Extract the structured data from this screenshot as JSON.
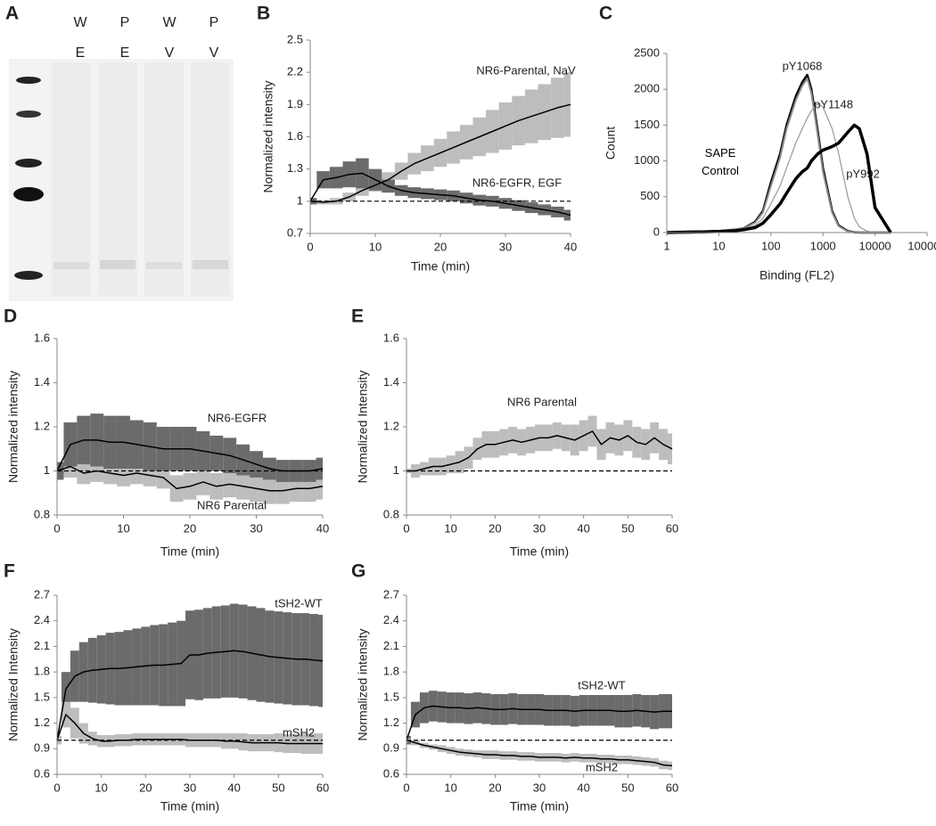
{
  "blot": {
    "panel": "A",
    "lanes": [
      [
        "W",
        "E"
      ],
      [
        "P",
        "E"
      ],
      [
        "W",
        "V"
      ],
      [
        "P",
        "V"
      ]
    ]
  },
  "chart_data": [
    {
      "type": "line",
      "panel": "B",
      "xlabel": "Time (min)",
      "ylabel": "Normalized intensity",
      "x": [
        0,
        2,
        4,
        6,
        8,
        10,
        12,
        14,
        16,
        18,
        20,
        22,
        24,
        26,
        28,
        30,
        32,
        34,
        36,
        38,
        40
      ],
      "xlim": [
        0,
        40
      ],
      "xticks": [
        0,
        10,
        20,
        30,
        40
      ],
      "ylim": [
        0.7,
        2.5
      ],
      "yticks": [
        0.7,
        1,
        1.3,
        1.6,
        1.9,
        2.2,
        2.5
      ],
      "refline": 1,
      "series": [
        {
          "name": "NR6-Parental, NaV",
          "color": "#000000",
          "band_color": "#bdbdbd",
          "values": [
            1.0,
            0.99,
            1.0,
            1.04,
            1.1,
            1.15,
            1.2,
            1.28,
            1.35,
            1.4,
            1.45,
            1.5,
            1.55,
            1.6,
            1.65,
            1.7,
            1.75,
            1.79,
            1.83,
            1.87,
            1.9
          ],
          "errors": [
            0.02,
            0.02,
            0.03,
            0.04,
            0.05,
            0.06,
            0.07,
            0.08,
            0.1,
            0.12,
            0.13,
            0.15,
            0.16,
            0.18,
            0.2,
            0.22,
            0.23,
            0.25,
            0.26,
            0.28,
            0.3
          ]
        },
        {
          "name": "NR6-EGFR, EGF",
          "color": "#000000",
          "band_color": "#6b6b6b",
          "values": [
            1.0,
            1.2,
            1.22,
            1.25,
            1.26,
            1.2,
            1.14,
            1.1,
            1.08,
            1.07,
            1.06,
            1.05,
            1.03,
            1.01,
            1.0,
            0.98,
            0.96,
            0.94,
            0.92,
            0.9,
            0.87
          ],
          "errors": [
            0.03,
            0.08,
            0.1,
            0.12,
            0.14,
            0.1,
            0.06,
            0.05,
            0.05,
            0.05,
            0.05,
            0.05,
            0.05,
            0.05,
            0.05,
            0.05,
            0.05,
            0.05,
            0.05,
            0.05,
            0.05
          ]
        }
      ]
    },
    {
      "type": "line",
      "panel": "C",
      "xlabel": "Binding (FL2)",
      "ylabel": "Count",
      "xscale": "log",
      "x": [
        1,
        2,
        5,
        10,
        20,
        30,
        50,
        70,
        100,
        150,
        200,
        300,
        400,
        500,
        600,
        800,
        1000,
        1500,
        2000,
        3000,
        4000,
        5000,
        7000,
        10000,
        20000
      ],
      "xlim": [
        1,
        100000
      ],
      "xticks": [
        1,
        10,
        100,
        1000,
        10000,
        100000
      ],
      "ylim": [
        0,
        2500
      ],
      "yticks": [
        0,
        500,
        1000,
        1500,
        2000,
        2500
      ],
      "series": [
        {
          "name": "SAPE Control",
          "color": "#000000",
          "width": 2.5,
          "values": [
            0,
            10,
            15,
            20,
            40,
            60,
            150,
            300,
            700,
            1100,
            1500,
            1900,
            2100,
            2200,
            2000,
            1400,
            900,
            300,
            100,
            20,
            5,
            0,
            0,
            0,
            0
          ]
        },
        {
          "name": "pY1068",
          "color": "#888888",
          "width": 2,
          "values": [
            0,
            10,
            15,
            20,
            40,
            60,
            140,
            280,
            650,
            1050,
            1450,
            1850,
            2050,
            2150,
            1950,
            1350,
            850,
            280,
            90,
            15,
            5,
            0,
            0,
            0,
            0
          ]
        },
        {
          "name": "pY1148",
          "color": "#999999",
          "width": 1.2,
          "values": [
            0,
            5,
            10,
            15,
            30,
            50,
            100,
            200,
            400,
            650,
            900,
            1250,
            1450,
            1600,
            1700,
            1800,
            1750,
            1450,
            1100,
            500,
            200,
            80,
            20,
            0,
            0
          ]
        },
        {
          "name": "pY992",
          "color": "#000000",
          "width": 3.5,
          "values": [
            0,
            5,
            10,
            15,
            25,
            40,
            70,
            130,
            250,
            400,
            550,
            750,
            850,
            900,
            1000,
            1100,
            1150,
            1200,
            1250,
            1400,
            1500,
            1450,
            1100,
            350,
            0
          ]
        }
      ]
    },
    {
      "type": "line",
      "panel": "D",
      "xlabel": "Time (min)",
      "ylabel": "Normalized intensity",
      "x": [
        0,
        2,
        4,
        6,
        8,
        10,
        12,
        14,
        16,
        18,
        20,
        22,
        24,
        26,
        28,
        30,
        32,
        34,
        36,
        38,
        40
      ],
      "xlim": [
        0,
        40
      ],
      "xticks": [
        0,
        10,
        20,
        30,
        40
      ],
      "ylim": [
        0.8,
        1.6
      ],
      "yticks": [
        0.8,
        1,
        1.2,
        1.4,
        1.6
      ],
      "refline": 1,
      "series": [
        {
          "name": "NR6 Parental",
          "color": "#000000",
          "band_color": "#bdbdbd",
          "values": [
            1.0,
            1.02,
            0.99,
            1.0,
            0.99,
            0.98,
            0.99,
            0.98,
            0.97,
            0.92,
            0.93,
            0.95,
            0.93,
            0.94,
            0.93,
            0.92,
            0.91,
            0.91,
            0.92,
            0.92,
            0.93
          ],
          "errors": [
            0.04,
            0.05,
            0.05,
            0.05,
            0.05,
            0.05,
            0.05,
            0.05,
            0.05,
            0.06,
            0.06,
            0.06,
            0.06,
            0.06,
            0.06,
            0.06,
            0.06,
            0.06,
            0.06,
            0.06,
            0.06
          ]
        },
        {
          "name": "NR6-EGFR",
          "color": "#000000",
          "band_color": "#6b6b6b",
          "values": [
            1.0,
            1.12,
            1.14,
            1.14,
            1.13,
            1.13,
            1.12,
            1.11,
            1.1,
            1.1,
            1.1,
            1.09,
            1.08,
            1.07,
            1.05,
            1.03,
            1.01,
            1.0,
            1.0,
            1.0,
            1.01
          ],
          "errors": [
            0.04,
            0.1,
            0.11,
            0.12,
            0.12,
            0.12,
            0.11,
            0.11,
            0.1,
            0.1,
            0.1,
            0.09,
            0.08,
            0.08,
            0.07,
            0.06,
            0.05,
            0.05,
            0.05,
            0.05,
            0.05
          ]
        }
      ]
    },
    {
      "type": "line",
      "panel": "E",
      "xlabel": "Time (min)",
      "ylabel": "Normalized Intensity",
      "x": [
        0,
        2,
        4,
        6,
        8,
        10,
        12,
        14,
        16,
        18,
        20,
        22,
        24,
        26,
        28,
        30,
        32,
        34,
        36,
        38,
        40,
        42,
        44,
        46,
        48,
        50,
        52,
        54,
        56,
        58,
        60
      ],
      "xlim": [
        0,
        60
      ],
      "xticks": [
        0,
        10,
        20,
        30,
        40,
        50,
        60
      ],
      "ylim": [
        0.8,
        1.6
      ],
      "yticks": [
        0.8,
        1,
        1.2,
        1.4,
        1.6
      ],
      "refline": 1,
      "series": [
        {
          "name": "NR6 Parental",
          "color": "#000000",
          "band_color": "#bdbdbd",
          "values": [
            1.0,
            1.0,
            1.01,
            1.02,
            1.02,
            1.03,
            1.04,
            1.06,
            1.1,
            1.12,
            1.12,
            1.13,
            1.14,
            1.13,
            1.14,
            1.15,
            1.15,
            1.16,
            1.15,
            1.14,
            1.16,
            1.18,
            1.12,
            1.15,
            1.14,
            1.16,
            1.13,
            1.12,
            1.15,
            1.12,
            1.1
          ],
          "errors": [
            0.01,
            0.03,
            0.03,
            0.04,
            0.04,
            0.04,
            0.05,
            0.05,
            0.05,
            0.06,
            0.06,
            0.06,
            0.06,
            0.06,
            0.06,
            0.06,
            0.06,
            0.06,
            0.06,
            0.07,
            0.07,
            0.07,
            0.07,
            0.07,
            0.07,
            0.07,
            0.07,
            0.07,
            0.07,
            0.07,
            0.07
          ]
        }
      ]
    },
    {
      "type": "line",
      "panel": "F",
      "xlabel": "Time (min)",
      "ylabel": "Normalized Intensity",
      "x": [
        0,
        2,
        4,
        6,
        8,
        10,
        12,
        14,
        16,
        18,
        20,
        22,
        24,
        26,
        28,
        30,
        32,
        34,
        36,
        38,
        40,
        42,
        44,
        46,
        48,
        50,
        52,
        54,
        56,
        58,
        60
      ],
      "xlim": [
        0,
        60
      ],
      "xticks": [
        0,
        10,
        20,
        30,
        40,
        50,
        60
      ],
      "ylim": [
        0.6,
        2.7
      ],
      "yticks": [
        0.6,
        0.9,
        1.2,
        1.5,
        1.8,
        2.1,
        2.4,
        2.7
      ],
      "refline": 1,
      "series": [
        {
          "name": "tSH2-WT",
          "color": "#000000",
          "band_color": "#6b6b6b",
          "values": [
            1.0,
            1.6,
            1.75,
            1.8,
            1.82,
            1.83,
            1.84,
            1.84,
            1.85,
            1.86,
            1.87,
            1.88,
            1.88,
            1.89,
            1.9,
            2.0,
            2.0,
            2.02,
            2.03,
            2.04,
            2.05,
            2.04,
            2.02,
            2.0,
            1.98,
            1.97,
            1.96,
            1.95,
            1.95,
            1.94,
            1.93
          ],
          "errors": [
            0.05,
            0.2,
            0.3,
            0.35,
            0.38,
            0.4,
            0.42,
            0.43,
            0.44,
            0.45,
            0.46,
            0.47,
            0.48,
            0.49,
            0.5,
            0.52,
            0.53,
            0.53,
            0.54,
            0.54,
            0.55,
            0.55,
            0.55,
            0.55,
            0.54,
            0.54,
            0.54,
            0.54,
            0.54,
            0.54,
            0.54
          ]
        },
        {
          "name": "mSH2",
          "color": "#000000",
          "band_color": "#bdbdbd",
          "values": [
            1.0,
            1.3,
            1.2,
            1.08,
            1.02,
            0.99,
            0.99,
            1.0,
            1.0,
            1.01,
            1.01,
            1.01,
            1.01,
            1.01,
            1.01,
            1.0,
            1.0,
            1.0,
            1.0,
            0.99,
            0.99,
            0.98,
            0.97,
            0.97,
            0.97,
            0.97,
            0.96,
            0.96,
            0.96,
            0.96,
            0.96
          ],
          "errors": [
            0.05,
            0.15,
            0.18,
            0.12,
            0.08,
            0.07,
            0.07,
            0.07,
            0.07,
            0.07,
            0.07,
            0.07,
            0.07,
            0.07,
            0.07,
            0.08,
            0.08,
            0.08,
            0.08,
            0.09,
            0.09,
            0.1,
            0.1,
            0.1,
            0.1,
            0.11,
            0.11,
            0.11,
            0.12,
            0.12,
            0.12
          ]
        }
      ]
    },
    {
      "type": "line",
      "panel": "G",
      "xlabel": "Time (min)",
      "ylabel": "Normalized intensity",
      "x": [
        0,
        2,
        4,
        6,
        8,
        10,
        12,
        14,
        16,
        18,
        20,
        22,
        24,
        26,
        28,
        30,
        32,
        34,
        36,
        38,
        40,
        42,
        44,
        46,
        48,
        50,
        52,
        54,
        56,
        58,
        60
      ],
      "xlim": [
        0,
        60
      ],
      "xticks": [
        0,
        10,
        20,
        30,
        40,
        50,
        60
      ],
      "ylim": [
        0.6,
        2.7
      ],
      "yticks": [
        0.6,
        0.9,
        1.2,
        1.5,
        1.8,
        2.1,
        2.4,
        2.7
      ],
      "refline": 1,
      "series": [
        {
          "name": "tSH2-WT",
          "color": "#000000",
          "band_color": "#6b6b6b",
          "values": [
            1.0,
            1.3,
            1.38,
            1.4,
            1.39,
            1.38,
            1.38,
            1.37,
            1.38,
            1.37,
            1.36,
            1.36,
            1.37,
            1.36,
            1.36,
            1.36,
            1.35,
            1.35,
            1.35,
            1.34,
            1.35,
            1.35,
            1.35,
            1.35,
            1.34,
            1.34,
            1.35,
            1.34,
            1.33,
            1.34,
            1.34
          ],
          "errors": [
            0.05,
            0.15,
            0.18,
            0.18,
            0.18,
            0.18,
            0.18,
            0.18,
            0.18,
            0.18,
            0.18,
            0.18,
            0.18,
            0.18,
            0.18,
            0.18,
            0.18,
            0.18,
            0.18,
            0.18,
            0.18,
            0.18,
            0.18,
            0.18,
            0.19,
            0.19,
            0.19,
            0.19,
            0.2,
            0.2,
            0.2
          ]
        },
        {
          "name": "mSH2",
          "color": "#000000",
          "band_color": "#bdbdbd",
          "values": [
            1.0,
            0.97,
            0.94,
            0.92,
            0.9,
            0.88,
            0.86,
            0.85,
            0.84,
            0.83,
            0.83,
            0.82,
            0.82,
            0.81,
            0.81,
            0.8,
            0.8,
            0.8,
            0.79,
            0.8,
            0.79,
            0.79,
            0.78,
            0.78,
            0.77,
            0.77,
            0.76,
            0.75,
            0.74,
            0.71,
            0.7
          ],
          "errors": [
            0.02,
            0.03,
            0.03,
            0.03,
            0.04,
            0.04,
            0.04,
            0.04,
            0.04,
            0.05,
            0.05,
            0.05,
            0.05,
            0.05,
            0.05,
            0.05,
            0.05,
            0.05,
            0.05,
            0.05,
            0.05,
            0.05,
            0.05,
            0.05,
            0.05,
            0.05,
            0.05,
            0.05,
            0.05,
            0.05,
            0.05
          ]
        }
      ]
    }
  ]
}
